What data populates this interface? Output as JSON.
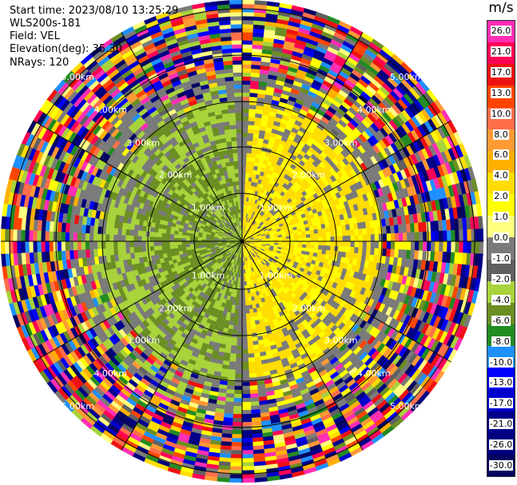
{
  "info": {
    "start_time": "Start time: 2023/08/10 13:25:29",
    "instrument": "WLS200s-181",
    "field": "Field: VEL",
    "elevation": "Elevation(deg): 35.30",
    "nrays": "NRays: 120"
  },
  "rings": {
    "labels": [
      "1.00km",
      "2.00km",
      "3.00km",
      "4.00km",
      "5.00km"
    ]
  },
  "colorbar": {
    "unit": "m/s",
    "ticks": [
      "26.0",
      "21.0",
      "17.0",
      "13.0",
      "10.0",
      "8.0",
      "6.0",
      "4.0",
      "2.0",
      "1.0",
      "0.0",
      "-1.0",
      "-2.0",
      "-4.0",
      "-6.0",
      "-8.0",
      "-10.0",
      "-13.0",
      "-17.0",
      "-21.0",
      "-26.0",
      "-30.0"
    ],
    "colors": [
      "#ff2db4",
      "#ff0055",
      "#ee1111",
      "#ff4500",
      "#ff6e4a",
      "#ff9a33",
      "#ffb000",
      "#ffdd00",
      "#ffff00",
      "#ffff80",
      "#7a7a7a",
      "#606060",
      "#a8d33a",
      "#6b8e23",
      "#228b22",
      "#1e90ff",
      "#0000ff",
      "#0000cd",
      "#00008b",
      "#000080",
      "#050560"
    ]
  }
}
